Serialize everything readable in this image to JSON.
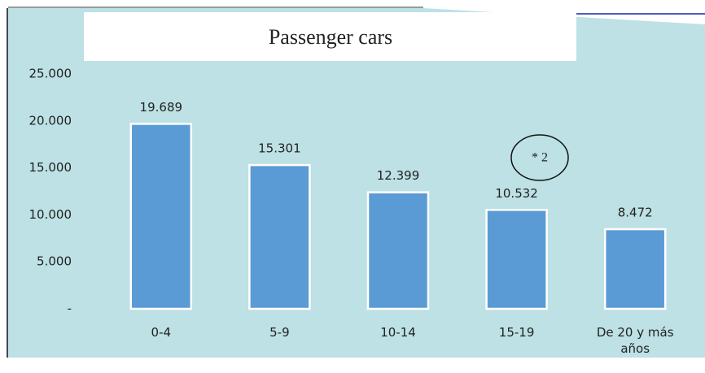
{
  "chart_data": {
    "type": "bar",
    "title": "Passenger cars",
    "categories": [
      "0-4",
      "5-9",
      "10-14",
      "15-19",
      "De 20 y más años"
    ],
    "values": [
      19689,
      15301,
      12399,
      10532,
      8472
    ],
    "value_labels": [
      "19.689",
      "15.301",
      "12.399",
      "10.532",
      "8.472"
    ],
    "color": "#5b9bd5",
    "ylim": [
      0,
      25000
    ],
    "yticks": [
      {
        "value": 0,
        "label": "-"
      },
      {
        "value": 5000,
        "label": "5.000"
      },
      {
        "value": 10000,
        "label": "10.000"
      },
      {
        "value": 15000,
        "label": "15.000"
      },
      {
        "value": 20000,
        "label": "20.000"
      },
      {
        "value": 25000,
        "label": "25.000"
      }
    ],
    "grid": false,
    "annotation": "* 2"
  }
}
